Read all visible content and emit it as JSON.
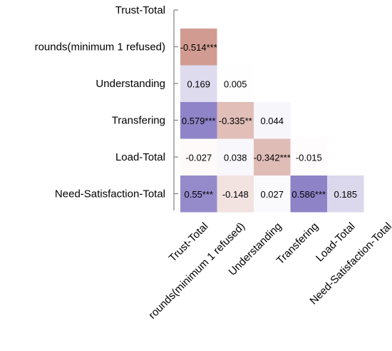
{
  "chart_data": {
    "type": "heatmap",
    "variables": [
      "Trust-Total",
      "rounds(minimum 1 refused)",
      "Understanding",
      "Transfering",
      "Load-Total",
      "Need-Satisfaction-Total"
    ],
    "layout": "lower-triangle",
    "cells": [
      {
        "row": 1,
        "col": 0,
        "value": -0.514,
        "label": "-0.514***"
      },
      {
        "row": 2,
        "col": 0,
        "value": 0.169,
        "label": "0.169"
      },
      {
        "row": 2,
        "col": 1,
        "value": 0.005,
        "label": "0.005"
      },
      {
        "row": 3,
        "col": 0,
        "value": 0.579,
        "label": "0.579***"
      },
      {
        "row": 3,
        "col": 1,
        "value": -0.335,
        "label": "-0.335**"
      },
      {
        "row": 3,
        "col": 2,
        "value": 0.044,
        "label": "0.044"
      },
      {
        "row": 4,
        "col": 0,
        "value": -0.027,
        "label": "-0.027"
      },
      {
        "row": 4,
        "col": 1,
        "value": 0.038,
        "label": "0.038"
      },
      {
        "row": 4,
        "col": 2,
        "value": -0.342,
        "label": "-0.342***"
      },
      {
        "row": 4,
        "col": 3,
        "value": -0.015,
        "label": "-0.015"
      },
      {
        "row": 5,
        "col": 0,
        "value": 0.55,
        "label": "0.55***"
      },
      {
        "row": 5,
        "col": 1,
        "value": -0.148,
        "label": "-0.148"
      },
      {
        "row": 5,
        "col": 2,
        "value": 0.027,
        "label": "0.027"
      },
      {
        "row": 5,
        "col": 3,
        "value": 0.586,
        "label": "0.586***"
      },
      {
        "row": 5,
        "col": 4,
        "value": 0.185,
        "label": "0.185"
      }
    ],
    "colors": {
      "positive": "#8b80c6",
      "negative": "#c98a80",
      "neutral": "#ffffff",
      "axis": "#808080"
    },
    "title": "",
    "xlabel": "",
    "ylabel": ""
  }
}
